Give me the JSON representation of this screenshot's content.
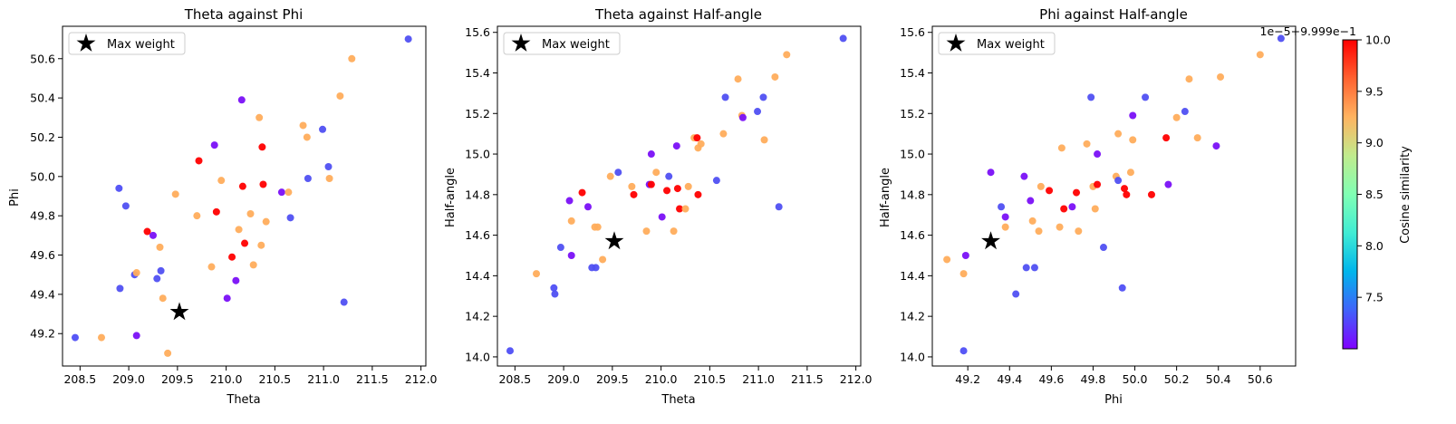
{
  "chart_data": [
    {
      "type": "scatter",
      "title": "Theta against Phi",
      "xlabel": "Theta",
      "ylabel": "Phi",
      "xlim": [
        208.32,
        212.05
      ],
      "ylim": [
        49.035,
        50.765
      ],
      "xticks": [
        "208.5",
        "209.0",
        "209.5",
        "210.0",
        "210.5",
        "211.0",
        "211.5",
        "212.0"
      ],
      "yticks": [
        "49.2",
        "49.4",
        "49.6",
        "49.8",
        "50.0",
        "50.2",
        "50.4",
        "50.6"
      ],
      "legend": {
        "label": "Max weight",
        "position": "top-left"
      },
      "max_weight_point": {
        "x": 209.52,
        "y": 49.31
      },
      "points": [
        {
          "x": 208.45,
          "y": 49.18,
          "c": 0.2
        },
        {
          "x": 208.72,
          "y": 49.18,
          "c": 0.7
        },
        {
          "x": 208.9,
          "y": 49.94,
          "c": 0.2
        },
        {
          "x": 208.91,
          "y": 49.43,
          "c": 0.15
        },
        {
          "x": 208.97,
          "y": 49.85,
          "c": 0.15
        },
        {
          "x": 209.06,
          "y": 49.5,
          "c": 0.15
        },
        {
          "x": 209.08,
          "y": 49.51,
          "c": 0.7
        },
        {
          "x": 209.08,
          "y": 49.19,
          "c": 0.05
        },
        {
          "x": 209.19,
          "y": 49.72,
          "c": 1.0
        },
        {
          "x": 209.25,
          "y": 49.7,
          "c": 0.05
        },
        {
          "x": 209.29,
          "y": 49.48,
          "c": 0.15
        },
        {
          "x": 209.32,
          "y": 49.64,
          "c": 0.7
        },
        {
          "x": 209.33,
          "y": 49.52,
          "c": 0.15
        },
        {
          "x": 209.35,
          "y": 49.38,
          "c": 0.7
        },
        {
          "x": 209.4,
          "y": 49.1,
          "c": 0.7
        },
        {
          "x": 209.48,
          "y": 49.91,
          "c": 0.7
        },
        {
          "x": 209.7,
          "y": 49.8,
          "c": 0.7
        },
        {
          "x": 209.72,
          "y": 50.08,
          "c": 1.0
        },
        {
          "x": 209.85,
          "y": 49.54,
          "c": 0.7
        },
        {
          "x": 209.88,
          "y": 50.16,
          "c": 0.05
        },
        {
          "x": 209.9,
          "y": 49.82,
          "c": 1.0
        },
        {
          "x": 209.95,
          "y": 49.98,
          "c": 0.7
        },
        {
          "x": 210.01,
          "y": 49.38,
          "c": 0.05
        },
        {
          "x": 210.06,
          "y": 49.59,
          "c": 1.0
        },
        {
          "x": 210.1,
          "y": 49.47,
          "c": 0.05
        },
        {
          "x": 210.13,
          "y": 49.73,
          "c": 0.7
        },
        {
          "x": 210.16,
          "y": 50.39,
          "c": 0.05
        },
        {
          "x": 210.17,
          "y": 49.95,
          "c": 1.0
        },
        {
          "x": 210.19,
          "y": 49.66,
          "c": 1.0
        },
        {
          "x": 210.25,
          "y": 49.81,
          "c": 0.7
        },
        {
          "x": 210.28,
          "y": 49.55,
          "c": 0.7
        },
        {
          "x": 210.34,
          "y": 50.3,
          "c": 0.7
        },
        {
          "x": 210.36,
          "y": 49.65,
          "c": 0.7
        },
        {
          "x": 210.37,
          "y": 50.15,
          "c": 1.0
        },
        {
          "x": 210.38,
          "y": 49.96,
          "c": 1.0
        },
        {
          "x": 210.41,
          "y": 49.77,
          "c": 0.7
        },
        {
          "x": 210.57,
          "y": 49.92,
          "c": 0.05
        },
        {
          "x": 210.64,
          "y": 49.92,
          "c": 0.7
        },
        {
          "x": 210.66,
          "y": 49.79,
          "c": 0.15
        },
        {
          "x": 210.79,
          "y": 50.26,
          "c": 0.7
        },
        {
          "x": 210.83,
          "y": 50.2,
          "c": 0.7
        },
        {
          "x": 210.84,
          "y": 49.99,
          "c": 0.15
        },
        {
          "x": 210.99,
          "y": 50.24,
          "c": 0.15
        },
        {
          "x": 211.05,
          "y": 50.05,
          "c": 0.15
        },
        {
          "x": 211.06,
          "y": 49.99,
          "c": 0.7
        },
        {
          "x": 211.17,
          "y": 50.41,
          "c": 0.7
        },
        {
          "x": 211.21,
          "y": 49.36,
          "c": 0.15
        },
        {
          "x": 211.29,
          "y": 50.6,
          "c": 0.7
        },
        {
          "x": 211.87,
          "y": 50.7,
          "c": 0.15
        }
      ]
    },
    {
      "type": "scatter",
      "title": "Theta against Half-angle",
      "xlabel": "Theta",
      "ylabel": "Half-angle",
      "xlim": [
        208.32,
        212.05
      ],
      "ylim": [
        13.955,
        15.63
      ],
      "xticks": [
        "208.5",
        "209.0",
        "209.5",
        "210.0",
        "210.5",
        "211.0",
        "211.5",
        "212.0"
      ],
      "yticks": [
        "14.0",
        "14.2",
        "14.4",
        "14.6",
        "14.8",
        "15.0",
        "15.2",
        "15.4",
        "15.6"
      ],
      "legend": {
        "label": "Max weight",
        "position": "top-left"
      },
      "max_weight_point": {
        "x": 209.52,
        "y": 14.57
      },
      "points": [
        {
          "x": 208.45,
          "y": 14.03,
          "c": 0.2
        },
        {
          "x": 208.72,
          "y": 14.41,
          "c": 0.7
        },
        {
          "x": 208.9,
          "y": 14.34,
          "c": 0.2
        },
        {
          "x": 208.91,
          "y": 14.31,
          "c": 0.15
        },
        {
          "x": 208.97,
          "y": 14.54,
          "c": 0.15
        },
        {
          "x": 209.06,
          "y": 14.77,
          "c": 0.05
        },
        {
          "x": 209.08,
          "y": 14.67,
          "c": 0.7
        },
        {
          "x": 209.08,
          "y": 14.5,
          "c": 0.05
        },
        {
          "x": 209.19,
          "y": 14.81,
          "c": 1.0
        },
        {
          "x": 209.25,
          "y": 14.74,
          "c": 0.05
        },
        {
          "x": 209.29,
          "y": 14.44,
          "c": 0.15
        },
        {
          "x": 209.32,
          "y": 14.64,
          "c": 0.7
        },
        {
          "x": 209.33,
          "y": 14.44,
          "c": 0.15
        },
        {
          "x": 209.35,
          "y": 14.64,
          "c": 0.7
        },
        {
          "x": 209.4,
          "y": 14.48,
          "c": 0.7
        },
        {
          "x": 209.48,
          "y": 14.89,
          "c": 0.7
        },
        {
          "x": 209.56,
          "y": 14.91,
          "c": 0.15
        },
        {
          "x": 209.7,
          "y": 14.84,
          "c": 0.7
        },
        {
          "x": 209.72,
          "y": 14.8,
          "c": 1.0
        },
        {
          "x": 209.85,
          "y": 14.62,
          "c": 0.7
        },
        {
          "x": 209.88,
          "y": 14.85,
          "c": 0.05
        },
        {
          "x": 209.9,
          "y": 14.85,
          "c": 1.0
        },
        {
          "x": 209.9,
          "y": 15.0,
          "c": 0.05
        },
        {
          "x": 209.95,
          "y": 14.91,
          "c": 0.7
        },
        {
          "x": 210.01,
          "y": 14.69,
          "c": 0.05
        },
        {
          "x": 210.06,
          "y": 14.82,
          "c": 1.0
        },
        {
          "x": 210.08,
          "y": 14.89,
          "c": 0.15
        },
        {
          "x": 210.13,
          "y": 14.62,
          "c": 0.7
        },
        {
          "x": 210.16,
          "y": 15.04,
          "c": 0.05
        },
        {
          "x": 210.17,
          "y": 14.83,
          "c": 1.0
        },
        {
          "x": 210.19,
          "y": 14.73,
          "c": 1.0
        },
        {
          "x": 210.25,
          "y": 14.73,
          "c": 0.7
        },
        {
          "x": 210.28,
          "y": 14.84,
          "c": 0.7
        },
        {
          "x": 210.34,
          "y": 15.08,
          "c": 0.7
        },
        {
          "x": 210.37,
          "y": 15.08,
          "c": 1.0
        },
        {
          "x": 210.38,
          "y": 14.8,
          "c": 1.0
        },
        {
          "x": 210.38,
          "y": 15.03,
          "c": 0.7
        },
        {
          "x": 210.41,
          "y": 15.05,
          "c": 0.7
        },
        {
          "x": 210.57,
          "y": 14.87,
          "c": 0.15
        },
        {
          "x": 210.64,
          "y": 15.1,
          "c": 0.7
        },
        {
          "x": 210.66,
          "y": 15.28,
          "c": 0.15
        },
        {
          "x": 210.79,
          "y": 15.37,
          "c": 0.7
        },
        {
          "x": 210.83,
          "y": 15.19,
          "c": 0.7
        },
        {
          "x": 210.84,
          "y": 15.18,
          "c": 0.05
        },
        {
          "x": 210.99,
          "y": 15.21,
          "c": 0.15
        },
        {
          "x": 211.05,
          "y": 15.28,
          "c": 0.15
        },
        {
          "x": 211.06,
          "y": 15.07,
          "c": 0.7
        },
        {
          "x": 211.17,
          "y": 15.38,
          "c": 0.7
        },
        {
          "x": 211.21,
          "y": 14.74,
          "c": 0.15
        },
        {
          "x": 211.29,
          "y": 15.49,
          "c": 0.7
        },
        {
          "x": 211.87,
          "y": 15.57,
          "c": 0.15
        }
      ]
    },
    {
      "type": "scatter",
      "title": "Phi against Half-angle",
      "xlabel": "Phi",
      "ylabel": "Half-angle",
      "xlim": [
        49.03,
        50.77
      ],
      "ylim": [
        13.955,
        15.63
      ],
      "xticks": [
        "49.2",
        "49.4",
        "49.6",
        "49.8",
        "50.0",
        "50.2",
        "50.4",
        "50.6"
      ],
      "yticks": [
        "14.0",
        "14.2",
        "14.4",
        "14.6",
        "14.8",
        "15.0",
        "15.2",
        "15.4",
        "15.6"
      ],
      "legend": {
        "label": "Max weight",
        "position": "top-left"
      },
      "max_weight_point": {
        "x": 49.31,
        "y": 14.57
      },
      "points": [
        {
          "x": 49.1,
          "y": 14.48,
          "c": 0.7
        },
        {
          "x": 49.18,
          "y": 14.03,
          "c": 0.2
        },
        {
          "x": 49.18,
          "y": 14.41,
          "c": 0.7
        },
        {
          "x": 49.19,
          "y": 14.5,
          "c": 0.05
        },
        {
          "x": 49.31,
          "y": 14.91,
          "c": 0.05
        },
        {
          "x": 49.36,
          "y": 14.74,
          "c": 0.15
        },
        {
          "x": 49.38,
          "y": 14.69,
          "c": 0.05
        },
        {
          "x": 49.38,
          "y": 14.64,
          "c": 0.7
        },
        {
          "x": 49.43,
          "y": 14.31,
          "c": 0.15
        },
        {
          "x": 49.47,
          "y": 14.89,
          "c": 0.05
        },
        {
          "x": 49.48,
          "y": 14.44,
          "c": 0.15
        },
        {
          "x": 49.5,
          "y": 14.77,
          "c": 0.05
        },
        {
          "x": 49.51,
          "y": 14.67,
          "c": 0.7
        },
        {
          "x": 49.52,
          "y": 14.44,
          "c": 0.15
        },
        {
          "x": 49.54,
          "y": 14.62,
          "c": 0.7
        },
        {
          "x": 49.55,
          "y": 14.84,
          "c": 0.7
        },
        {
          "x": 49.59,
          "y": 14.82,
          "c": 1.0
        },
        {
          "x": 49.64,
          "y": 14.64,
          "c": 0.7
        },
        {
          "x": 49.65,
          "y": 15.03,
          "c": 0.7
        },
        {
          "x": 49.66,
          "y": 14.73,
          "c": 1.0
        },
        {
          "x": 49.7,
          "y": 14.74,
          "c": 0.05
        },
        {
          "x": 49.72,
          "y": 14.81,
          "c": 1.0
        },
        {
          "x": 49.73,
          "y": 14.62,
          "c": 0.7
        },
        {
          "x": 49.77,
          "y": 15.05,
          "c": 0.7
        },
        {
          "x": 49.79,
          "y": 15.28,
          "c": 0.15
        },
        {
          "x": 49.8,
          "y": 14.84,
          "c": 0.7
        },
        {
          "x": 49.81,
          "y": 14.73,
          "c": 0.7
        },
        {
          "x": 49.82,
          "y": 14.85,
          "c": 1.0
        },
        {
          "x": 49.82,
          "y": 15.0,
          "c": 0.05
        },
        {
          "x": 49.85,
          "y": 14.54,
          "c": 0.15
        },
        {
          "x": 49.91,
          "y": 14.89,
          "c": 0.7
        },
        {
          "x": 49.92,
          "y": 15.1,
          "c": 0.7
        },
        {
          "x": 49.92,
          "y": 14.87,
          "c": 0.15
        },
        {
          "x": 49.94,
          "y": 14.34,
          "c": 0.2
        },
        {
          "x": 49.95,
          "y": 14.83,
          "c": 1.0
        },
        {
          "x": 49.96,
          "y": 14.8,
          "c": 1.0
        },
        {
          "x": 49.98,
          "y": 14.91,
          "c": 0.7
        },
        {
          "x": 49.99,
          "y": 15.19,
          "c": 0.05
        },
        {
          "x": 49.99,
          "y": 15.07,
          "c": 0.7
        },
        {
          "x": 50.05,
          "y": 15.28,
          "c": 0.15
        },
        {
          "x": 50.08,
          "y": 14.8,
          "c": 1.0
        },
        {
          "x": 50.15,
          "y": 15.08,
          "c": 1.0
        },
        {
          "x": 50.16,
          "y": 14.85,
          "c": 0.05
        },
        {
          "x": 50.2,
          "y": 15.18,
          "c": 0.7
        },
        {
          "x": 50.24,
          "y": 15.21,
          "c": 0.15
        },
        {
          "x": 50.26,
          "y": 15.37,
          "c": 0.7
        },
        {
          "x": 50.3,
          "y": 15.08,
          "c": 0.7
        },
        {
          "x": 50.39,
          "y": 15.04,
          "c": 0.05
        },
        {
          "x": 50.41,
          "y": 15.38,
          "c": 0.7
        },
        {
          "x": 50.6,
          "y": 15.49,
          "c": 0.7
        },
        {
          "x": 50.7,
          "y": 15.57,
          "c": 0.15
        }
      ]
    }
  ],
  "colorbar": {
    "label": "Cosine similarity",
    "offset_text": "1e−5+9.999e−1",
    "ticks": [
      "7.5",
      "8.0",
      "8.5",
      "9.0",
      "9.5",
      "10.0"
    ],
    "tick_values": [
      7.5,
      8.0,
      8.5,
      9.0,
      9.5,
      10.0
    ],
    "range": [
      7.0,
      10.0
    ],
    "colormap": "rainbow"
  },
  "colors": {
    "marker_star": "#000000",
    "legend_border": "#cccccc"
  }
}
